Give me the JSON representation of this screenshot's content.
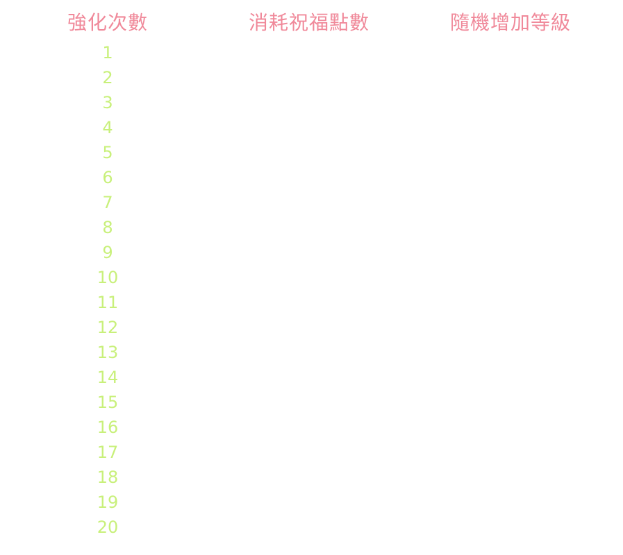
{
  "colors": {
    "header": "#f0899a",
    "number": "#c8f07a",
    "background": "#ffffff"
  },
  "headers": [
    "強化次數",
    "消耗祝福點數",
    "隨機增加等級"
  ],
  "rows": [
    {
      "count": "1"
    },
    {
      "count": "2"
    },
    {
      "count": "3"
    },
    {
      "count": "4"
    },
    {
      "count": "5"
    },
    {
      "count": "6"
    },
    {
      "count": "7"
    },
    {
      "count": "8"
    },
    {
      "count": "9"
    },
    {
      "count": "10"
    },
    {
      "count": "11"
    },
    {
      "count": "12"
    },
    {
      "count": "13"
    },
    {
      "count": "14"
    },
    {
      "count": "15"
    },
    {
      "count": "16"
    },
    {
      "count": "17"
    },
    {
      "count": "18"
    },
    {
      "count": "19"
    },
    {
      "count": "20"
    }
  ]
}
